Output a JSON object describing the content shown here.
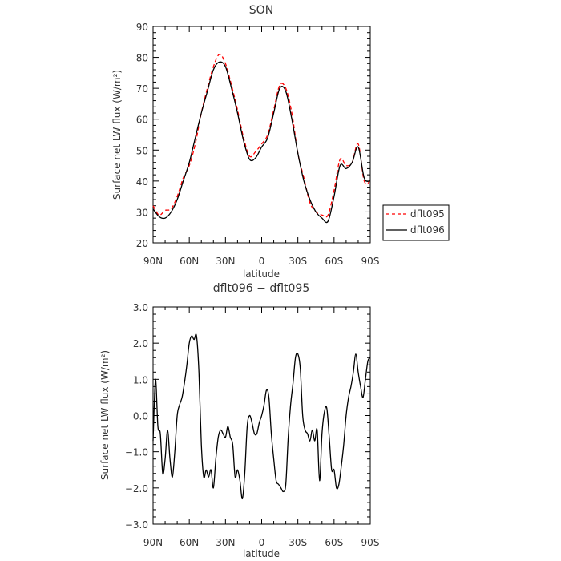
{
  "chart_data": [
    {
      "type": "line",
      "title": "SON",
      "xlabel": "latitude",
      "ylabel": "Surface net LW flux (W/m²)",
      "xlim": [
        90,
        -90
      ],
      "ylim": [
        20,
        90
      ],
      "x_ticks": [
        "90N",
        "60N",
        "30N",
        "0",
        "30S",
        "60S",
        "90S"
      ],
      "y_ticks": [
        "20",
        "30",
        "40",
        "50",
        "60",
        "70",
        "80",
        "90"
      ],
      "grid": false,
      "legend_position": "right",
      "x": [
        90,
        85,
        80,
        75,
        70,
        65,
        60,
        55,
        50,
        45,
        40,
        35,
        30,
        25,
        20,
        15,
        10,
        5,
        0,
        -5,
        -10,
        -15,
        -20,
        -25,
        -30,
        -35,
        -40,
        -45,
        -50,
        -55,
        -60,
        -65,
        -70,
        -75,
        -80,
        -85,
        -90
      ],
      "series": [
        {
          "name": "dflt095",
          "color": "#ff0000",
          "dash": true,
          "values": [
            32,
            29,
            30.5,
            31,
            35,
            41,
            45,
            52,
            62,
            70,
            77,
            81,
            78,
            71,
            63,
            54,
            48,
            49.5,
            52,
            55,
            63,
            71,
            70,
            62,
            49,
            41,
            33,
            30,
            29,
            29,
            37,
            47,
            45,
            46,
            52,
            40,
            40
          ]
        },
        {
          "name": "dflt096",
          "color": "#000000",
          "dash": false,
          "values": [
            31,
            28.5,
            28,
            30,
            34,
            40,
            46,
            54,
            62,
            69,
            76,
            78.5,
            77,
            70,
            62,
            53,
            47,
            47.5,
            51,
            54,
            62,
            70,
            69,
            60,
            49,
            40,
            34,
            30,
            28,
            27,
            35,
            45,
            44,
            46,
            51,
            41,
            40
          ]
        }
      ]
    },
    {
      "type": "line",
      "title": "dflt096 − dflt095",
      "xlabel": "latitude",
      "ylabel": "Surface net LW flux (W/m²)",
      "xlim": [
        90,
        -90
      ],
      "ylim": [
        -3.0,
        3.0
      ],
      "x_ticks": [
        "90N",
        "60N",
        "30N",
        "0",
        "30S",
        "60S",
        "90S"
      ],
      "y_ticks": [
        "−3.0",
        "−2.0",
        "−1.0",
        "0.0",
        "1.0",
        "2.0",
        "3.0"
      ],
      "grid": false,
      "x": [
        90,
        88,
        86,
        84,
        82,
        80,
        78,
        76,
        74,
        72,
        70,
        68,
        66,
        64,
        62,
        60,
        58,
        56,
        54,
        52,
        50,
        48,
        46,
        44,
        42,
        40,
        38,
        36,
        34,
        32,
        30,
        28,
        26,
        24,
        22,
        20,
        18,
        16,
        14,
        12,
        10,
        8,
        6,
        4,
        2,
        0,
        -2,
        -4,
        -6,
        -8,
        -10,
        -12,
        -14,
        -16,
        -18,
        -20,
        -22,
        -24,
        -26,
        -28,
        -30,
        -32,
        -34,
        -36,
        -38,
        -40,
        -42,
        -44,
        -46,
        -48,
        -50,
        -52,
        -54,
        -56,
        -58,
        -60,
        -62,
        -64,
        -66,
        -68,
        -70,
        -72,
        -74,
        -76,
        -78,
        -80,
        -82,
        -84,
        -86,
        -88,
        -90
      ],
      "series": [
        {
          "name": "",
          "color": "#000000",
          "values": [
            -0.7,
            1.0,
            -0.3,
            -0.5,
            -1.6,
            -1.2,
            -0.4,
            -1.2,
            -1.7,
            -1.0,
            0.0,
            0.3,
            0.5,
            0.9,
            1.4,
            2.0,
            2.2,
            2.1,
            2.2,
            1.2,
            -0.8,
            -1.7,
            -1.5,
            -1.7,
            -1.5,
            -2.0,
            -1.2,
            -0.6,
            -0.4,
            -0.5,
            -0.6,
            -0.3,
            -0.6,
            -0.8,
            -1.7,
            -1.5,
            -1.8,
            -2.3,
            -1.6,
            -0.3,
            0.0,
            -0.2,
            -0.5,
            -0.5,
            -0.2,
            0.0,
            0.3,
            0.7,
            0.5,
            -0.5,
            -1.2,
            -1.8,
            -1.9,
            -2.0,
            -2.1,
            -1.9,
            -0.6,
            0.3,
            0.9,
            1.6,
            1.7,
            1.3,
            0.0,
            -0.4,
            -0.5,
            -0.7,
            -0.4,
            -0.7,
            -0.4,
            -1.8,
            -0.5,
            0.1,
            0.2,
            -0.6,
            -1.5,
            -1.5,
            -2.0,
            -1.9,
            -1.4,
            -0.8,
            0.0,
            0.5,
            0.8,
            1.2,
            1.7,
            1.2,
            0.8,
            0.5,
            1.0,
            1.5,
            1.6
          ]
        }
      ]
    }
  ]
}
